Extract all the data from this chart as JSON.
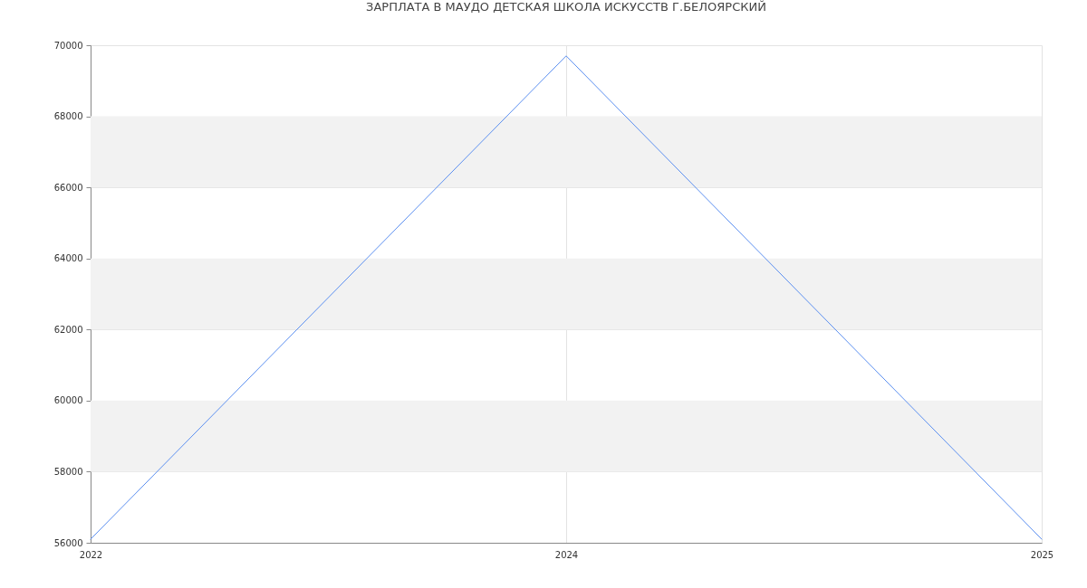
{
  "chart_data": {
    "type": "line",
    "title": "ЗАРПЛАТА В МАУДО ДЕТСКАЯ ШКОЛА ИСКУССТВ Г.БЕЛОЯРСКИЙ",
    "categories": [
      "2022",
      "2024",
      "2025"
    ],
    "series": [
      {
        "color": "#5b8ff0",
        "values": [
          56100,
          69700,
          56100
        ]
      }
    ],
    "ylim": [
      56000,
      70000
    ],
    "yticks": [
      56000,
      58000,
      60000,
      62000,
      64000,
      66000,
      68000,
      70000
    ],
    "grid": true,
    "bands": [
      {
        "axis": "y",
        "from": 58000,
        "to": 60000,
        "color": "#f2f2f2"
      },
      {
        "axis": "y",
        "from": 62000,
        "to": 64000,
        "color": "#f2f2f2"
      },
      {
        "axis": "y",
        "from": 66000,
        "to": 68000,
        "color": "#f2f2f2"
      }
    ]
  }
}
